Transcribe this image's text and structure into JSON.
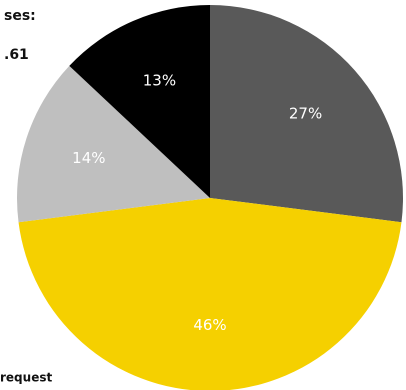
{
  "chart_data": {
    "type": "pie",
    "categories": [
      null,
      null,
      null,
      null
    ],
    "values": [
      27,
      46,
      14,
      13
    ],
    "value_labels": [
      "27%",
      "46%",
      "14%",
      "13%"
    ],
    "colors": [
      "#595959",
      "#f5d000",
      "#bfbfbf",
      "#000000"
    ],
    "annotations": [
      "ses:",
      ".61",
      "request"
    ]
  }
}
